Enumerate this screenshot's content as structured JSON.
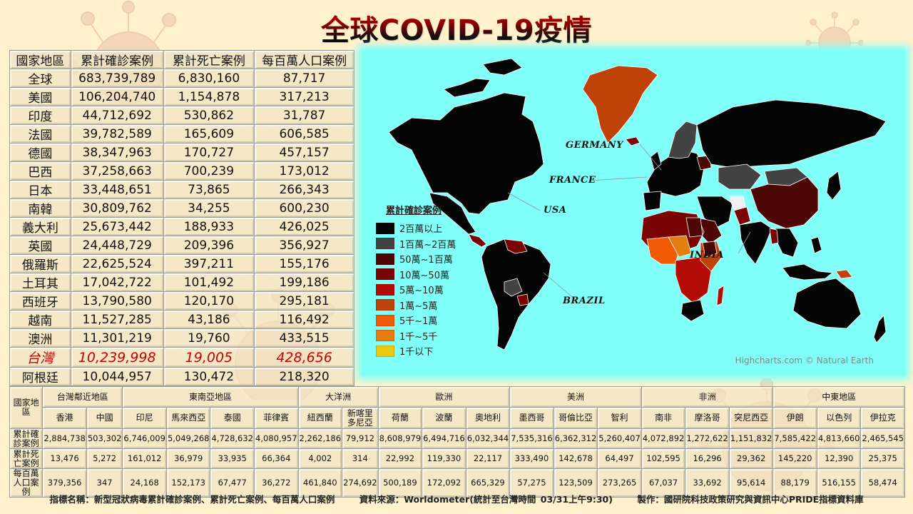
{
  "title": "全球COVID-19疫情",
  "top_table": {
    "headers": [
      "國家地區",
      "累計確診案例",
      "累計死亡案例",
      "每百萬人口案例"
    ],
    "rows": [
      {
        "region": "全球",
        "cases": "683,739,789",
        "deaths": "6,830,160",
        "per_million": "87,717"
      },
      {
        "region": "美國",
        "cases": "106,204,740",
        "deaths": "1,154,878",
        "per_million": "317,213"
      },
      {
        "region": "印度",
        "cases": "44,712,692",
        "deaths": "530,862",
        "per_million": "31,787"
      },
      {
        "region": "法國",
        "cases": "39,782,589",
        "deaths": "165,609",
        "per_million": "606,585"
      },
      {
        "region": "德國",
        "cases": "38,347,963",
        "deaths": "170,727",
        "per_million": "457,157"
      },
      {
        "region": "巴西",
        "cases": "37,258,663",
        "deaths": "700,239",
        "per_million": "173,012"
      },
      {
        "region": "日本",
        "cases": "33,448,651",
        "deaths": "73,865",
        "per_million": "266,343"
      },
      {
        "region": "南韓",
        "cases": "30,809,762",
        "deaths": "34,255",
        "per_million": "600,230"
      },
      {
        "region": "義大利",
        "cases": "25,673,442",
        "deaths": "188,933",
        "per_million": "426,025"
      },
      {
        "region": "英國",
        "cases": "24,448,729",
        "deaths": "209,396",
        "per_million": "356,927"
      },
      {
        "region": "俄羅斯",
        "cases": "22,625,524",
        "deaths": "397,211",
        "per_million": "155,176"
      },
      {
        "region": "土耳其",
        "cases": "17,042,722",
        "deaths": "101,492",
        "per_million": "199,186"
      },
      {
        "region": "西班牙",
        "cases": "13,790,580",
        "deaths": "120,170",
        "per_million": "295,181"
      },
      {
        "region": "越南",
        "cases": "11,527,285",
        "deaths": "43,186",
        "per_million": "116,492"
      },
      {
        "region": "澳洲",
        "cases": "11,301,219",
        "deaths": "19,760",
        "per_million": "433,515"
      },
      {
        "region": "台灣",
        "cases": "10,239,998",
        "deaths": "19,005",
        "per_million": "428,656",
        "highlight": true
      },
      {
        "region": "阿根廷",
        "cases": "10,044,957",
        "deaths": "130,472",
        "per_million": "218,320"
      }
    ]
  },
  "map": {
    "legend_title": "累計確診案例",
    "legend": [
      {
        "label": "2百萬以上",
        "color": "#050505"
      },
      {
        "label": "1百萬~2百萬",
        "color": "#434343"
      },
      {
        "label": "50萬~1百萬",
        "color": "#4d0705"
      },
      {
        "label": "10萬~50萬",
        "color": "#7a0304"
      },
      {
        "label": "5萬~10萬",
        "color": "#b30b06"
      },
      {
        "label": "1萬~5萬",
        "color": "#bf4208"
      },
      {
        "label": "5千~1萬",
        "color": "#f25a06"
      },
      {
        "label": "1千~5千",
        "color": "#e57e10"
      },
      {
        "label": "1千以下",
        "color": "#e8c810"
      }
    ],
    "labels": {
      "germany": "GERMANY",
      "france": "FRANCE",
      "usa": "USA",
      "india": "INDIA",
      "brazil": "BRAZIL"
    },
    "credit": "Highcharts.com © Natural Earth",
    "ocean_color": "#7ffff7"
  },
  "bottom_table": {
    "corner_header": "國家地區",
    "regions": [
      {
        "name": "台灣鄰近地區",
        "span": 2
      },
      {
        "name": "東南亞地區",
        "span": 4
      },
      {
        "name": "大洋洲",
        "span": 2
      },
      {
        "name": "歐洲",
        "span": 3
      },
      {
        "name": "美洲",
        "span": 3
      },
      {
        "name": "非洲",
        "span": 3
      },
      {
        "name": "中東地區",
        "span": 3
      }
    ],
    "countries": [
      "香港",
      "中國",
      "印尼",
      "馬來西亞",
      "泰國",
      "菲律賓",
      "紐西蘭",
      "新喀里多尼亞",
      "荷蘭",
      "波蘭",
      "奧地利",
      "墨西哥",
      "哥倫比亞",
      "智利",
      "南非",
      "摩洛哥",
      "突尼西亞",
      "伊朗",
      "以色列",
      "伊拉克"
    ],
    "row_headers": [
      "累計確診案例",
      "累計死亡案例",
      "每百萬人口案例"
    ],
    "rows": [
      [
        "2,884,738",
        "503,302",
        "6,746,009",
        "5,049,268",
        "4,728,632",
        "4,080,957",
        "2,262,186",
        "79,912",
        "8,608,979",
        "6,494,716",
        "6,032,344",
        "7,535,316",
        "6,362,312",
        "5,260,407",
        "4,072,892",
        "1,272,622",
        "1,151,832",
        "7,585,422",
        "4,813,660",
        "2,465,545"
      ],
      [
        "13,476",
        "5,272",
        "161,012",
        "36,979",
        "33,935",
        "66,364",
        "4,002",
        "314",
        "22,992",
        "119,330",
        "22,117",
        "333,490",
        "142,678",
        "64,497",
        "102,595",
        "16,296",
        "29,362",
        "145,220",
        "12,390",
        "25,375"
      ],
      [
        "379,356",
        "347",
        "24,168",
        "152,173",
        "67,477",
        "36,272",
        "461,840",
        "274,692",
        "500,189",
        "172,092",
        "665,329",
        "57,275",
        "123,509",
        "273,265",
        "67,037",
        "33,692",
        "95,614",
        "88,179",
        "516,155",
        "58,474"
      ]
    ]
  },
  "footer": {
    "indicator": "指標名稱：新型冠狀病毒累計確診案例、累計死亡案例、每百萬人口案例",
    "source": "資料來源：Worldometer(統計至台灣時間 03/31上午9:30)",
    "producer": "製作：國研院科技政策研究與資訊中心PRIDE指標資料庫"
  }
}
